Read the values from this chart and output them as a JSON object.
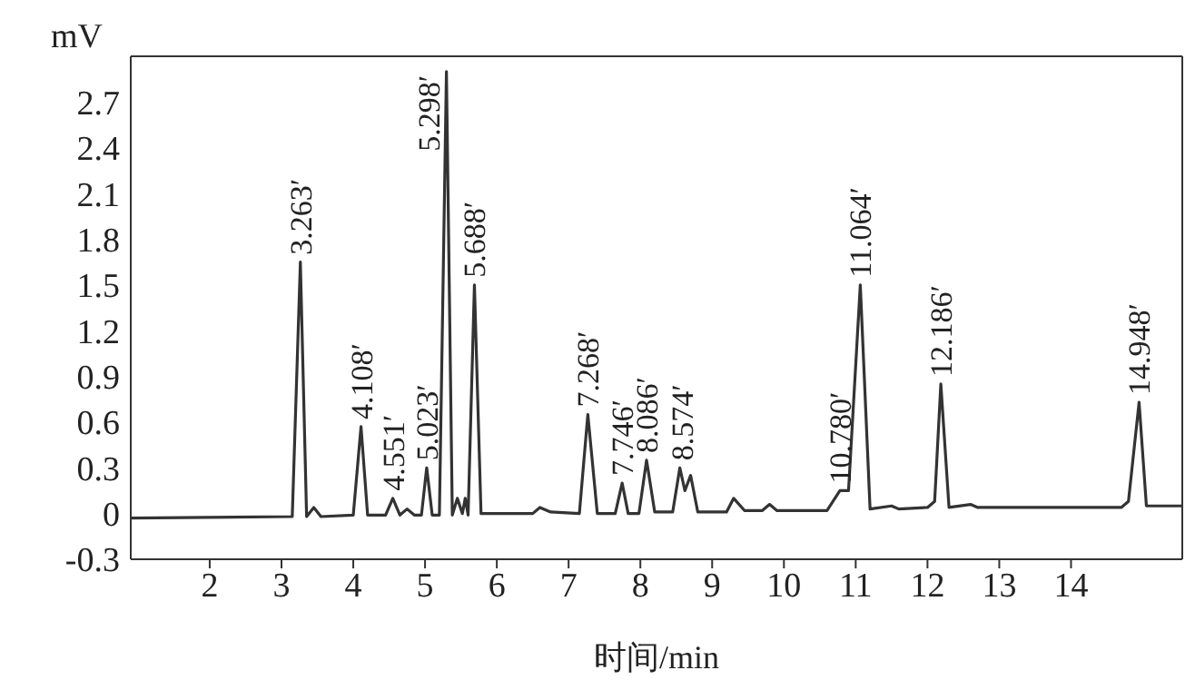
{
  "chart_data": {
    "type": "line",
    "xlabel": "时间/min",
    "ylabel": "mV",
    "xlim": [
      0.9,
      15.55
    ],
    "xticks": [
      2,
      3,
      4,
      5,
      6,
      7,
      8,
      9,
      10,
      11,
      12,
      13,
      14
    ],
    "ylim": [
      -0.3,
      3.0
    ],
    "yticks": [
      -0.3,
      0,
      0.3,
      0.6,
      0.9,
      1.2,
      1.5,
      1.8,
      2.1,
      2.4,
      2.7
    ],
    "grid": false,
    "marker": "none",
    "line_style": "solid",
    "series": [
      {
        "color": "#333333",
        "x": [
          0.9,
          3.15,
          3.263,
          3.35,
          3.45,
          3.55,
          4.0,
          4.108,
          4.2,
          4.45,
          4.551,
          4.65,
          4.75,
          4.85,
          4.95,
          5.023,
          5.1,
          5.2,
          5.298,
          5.38,
          5.45,
          5.52,
          5.56,
          5.6,
          5.688,
          5.78,
          6.5,
          6.6,
          6.75,
          7.15,
          7.268,
          7.4,
          7.65,
          7.746,
          7.83,
          7.98,
          8.086,
          8.2,
          8.45,
          8.55,
          8.62,
          8.7,
          8.8,
          9.2,
          9.3,
          9.45,
          9.7,
          9.8,
          9.9,
          10.6,
          10.78,
          10.9,
          11.064,
          11.2,
          11.5,
          11.6,
          12.0,
          12.1,
          12.186,
          12.3,
          12.6,
          12.7,
          13.4,
          14.7,
          14.8,
          14.948,
          15.05,
          15.55
        ],
        "values": [
          -0.03,
          -0.02,
          1.65,
          -0.02,
          0.04,
          -0.02,
          -0.01,
          0.57,
          -0.01,
          -0.01,
          0.1,
          -0.01,
          0.03,
          -0.01,
          -0.01,
          0.3,
          -0.01,
          -0.01,
          2.9,
          -0.01,
          0.1,
          0.0,
          0.1,
          -0.01,
          1.5,
          0.0,
          0.0,
          0.04,
          0.01,
          0.0,
          0.65,
          0.0,
          0.0,
          0.2,
          0.0,
          0.0,
          0.35,
          0.01,
          0.01,
          0.3,
          0.15,
          0.25,
          0.01,
          0.01,
          0.1,
          0.02,
          0.02,
          0.06,
          0.02,
          0.02,
          0.15,
          0.15,
          1.5,
          0.03,
          0.05,
          0.03,
          0.04,
          0.08,
          0.85,
          0.04,
          0.06,
          0.04,
          0.04,
          0.04,
          0.08,
          0.73,
          0.05,
          0.05
        ]
      }
    ],
    "annotations": [
      {
        "text": "3.263′",
        "x": 3.263,
        "y": 1.65
      },
      {
        "text": "4.108′",
        "x": 4.108,
        "y": 0.57
      },
      {
        "text": "4.551′",
        "x": 4.551,
        "y": 0.1
      },
      {
        "text": "5.023′",
        "x": 5.023,
        "y": 0.3
      },
      {
        "text": "5.298′",
        "x": 5.298,
        "y": 2.9
      },
      {
        "text": "5.688′",
        "x": 5.688,
        "y": 1.5
      },
      {
        "text": "7.268′",
        "x": 7.268,
        "y": 0.65
      },
      {
        "text": "7.746′",
        "x": 7.746,
        "y": 0.2
      },
      {
        "text": "8.086′",
        "x": 8.086,
        "y": 0.35
      },
      {
        "text": "8.574′",
        "x": 8.574,
        "y": 0.3
      },
      {
        "text": "10.780′",
        "x": 10.78,
        "y": 0.15
      },
      {
        "text": "11.064′",
        "x": 11.064,
        "y": 1.5
      },
      {
        "text": "12.186′",
        "x": 12.186,
        "y": 0.85
      },
      {
        "text": "14.948′",
        "x": 14.948,
        "y": 0.73
      }
    ]
  }
}
